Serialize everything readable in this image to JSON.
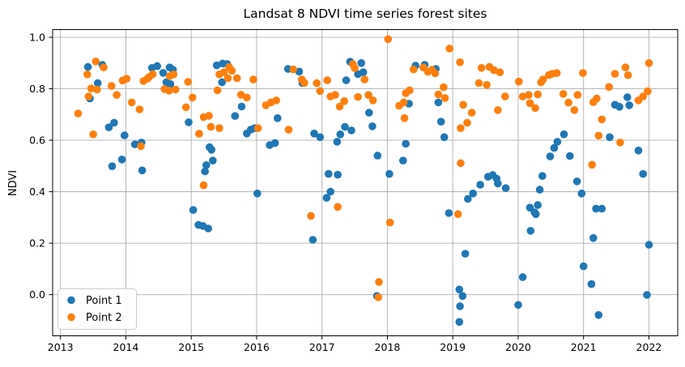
{
  "figure": {
    "title": "Landsat 8 NDVI time series forest sites",
    "ylabel": "NDVI",
    "legend": {
      "position": "lower left",
      "items": [
        {
          "label": "Point 1",
          "color": "#1f77b4"
        },
        {
          "label": "Point 2",
          "color": "#ff7f0e"
        }
      ]
    },
    "grid_color": "#b0b0b0",
    "spine_color": "#000000",
    "background_color": "#ffffff"
  },
  "chart_data": {
    "type": "scatter",
    "title": "Landsat 8 NDVI time series forest sites",
    "xlabel": "",
    "ylabel": "NDVI",
    "grid": true,
    "legend_position": "lower left",
    "xlim": [
      2012.88,
      2022.44
    ],
    "ylim": [
      -0.16,
      1.03
    ],
    "x_ticks": [
      2013,
      2014,
      2015,
      2016,
      2017,
      2018,
      2019,
      2020,
      2021,
      2022
    ],
    "x_tick_labels": [
      "2013",
      "2014",
      "2015",
      "2016",
      "2017",
      "2018",
      "2019",
      "2020",
      "2021",
      "2022"
    ],
    "y_ticks": [
      0.0,
      0.2,
      0.4,
      0.6,
      0.8,
      1.0
    ],
    "y_tick_labels": [
      "0.0",
      "0.2",
      "0.4",
      "0.6",
      "0.8",
      "1.0"
    ],
    "marker": "circle",
    "marker_radius_px": 4.8,
    "series": [
      {
        "name": "Point 1",
        "color": "#1f77b4",
        "points": [
          [
            2013.42,
            0.885
          ],
          [
            2013.64,
            0.893
          ],
          [
            2013.57,
            0.822
          ],
          [
            2013.45,
            0.762
          ],
          [
            2013.74,
            0.65
          ],
          [
            2013.82,
            0.668
          ],
          [
            2013.98,
            0.619
          ],
          [
            2014.14,
            0.584
          ],
          [
            2014.24,
            0.591
          ],
          [
            2013.79,
            0.499
          ],
          [
            2013.94,
            0.525
          ],
          [
            2014.25,
            0.483
          ],
          [
            2014.4,
            0.881
          ],
          [
            2014.48,
            0.888
          ],
          [
            2014.57,
            0.862
          ],
          [
            2014.67,
            0.883
          ],
          [
            2014.72,
            0.874
          ],
          [
            2014.62,
            0.825
          ],
          [
            2014.68,
            0.818
          ],
          [
            2014.96,
            0.67
          ],
          [
            2015.03,
            0.329
          ],
          [
            2015.11,
            0.271
          ],
          [
            2015.18,
            0.267
          ],
          [
            2015.26,
            0.257
          ],
          [
            2015.28,
            0.573
          ],
          [
            2015.31,
            0.563
          ],
          [
            2015.33,
            0.521
          ],
          [
            2015.23,
            0.503
          ],
          [
            2015.21,
            0.479
          ],
          [
            2015.39,
            0.891
          ],
          [
            2015.48,
            0.898
          ],
          [
            2015.55,
            0.896
          ],
          [
            2015.47,
            0.825
          ],
          [
            2015.77,
            0.731
          ],
          [
            2015.67,
            0.694
          ],
          [
            2015.85,
            0.626
          ],
          [
            2015.91,
            0.641
          ],
          [
            2015.97,
            0.647
          ],
          [
            2016.01,
            0.393
          ],
          [
            2016.2,
            0.581
          ],
          [
            2016.28,
            0.589
          ],
          [
            2016.32,
            0.686
          ],
          [
            2016.48,
            0.877
          ],
          [
            2016.65,
            0.867
          ],
          [
            2016.7,
            0.822
          ],
          [
            2016.86,
            0.213
          ],
          [
            2016.88,
            0.626
          ],
          [
            2016.97,
            0.612
          ],
          [
            2017.07,
            0.376
          ],
          [
            2017.13,
            0.4
          ],
          [
            2017.1,
            0.469
          ],
          [
            2017.24,
            0.466
          ],
          [
            2017.28,
            0.623
          ],
          [
            2017.23,
            0.594
          ],
          [
            2017.35,
            0.652
          ],
          [
            2017.45,
            0.638
          ],
          [
            2017.37,
            0.833
          ],
          [
            2017.43,
            0.905
          ],
          [
            2017.55,
            0.857
          ],
          [
            2017.63,
            0.864
          ],
          [
            2017.6,
            0.9
          ],
          [
            2017.72,
            0.707
          ],
          [
            2017.77,
            0.654
          ],
          [
            2017.85,
            0.54
          ],
          [
            2017.84,
            -0.005
          ],
          [
            2018.03,
            0.469
          ],
          [
            2018.24,
            0.521
          ],
          [
            2018.28,
            0.586
          ],
          [
            2018.33,
            0.742
          ],
          [
            2018.43,
            0.89
          ],
          [
            2018.57,
            0.893
          ],
          [
            2018.74,
            0.877
          ],
          [
            2018.78,
            0.747
          ],
          [
            2018.82,
            0.672
          ],
          [
            2018.87,
            0.612
          ],
          [
            2018.94,
            0.317
          ],
          [
            2019.1,
            0.02
          ],
          [
            2019.15,
            -0.005
          ],
          [
            2019.11,
            -0.045
          ],
          [
            2019.1,
            -0.106
          ],
          [
            2019.19,
            0.159
          ],
          [
            2019.23,
            0.372
          ],
          [
            2019.31,
            0.393
          ],
          [
            2019.42,
            0.427
          ],
          [
            2019.54,
            0.458
          ],
          [
            2019.61,
            0.465
          ],
          [
            2019.67,
            0.451
          ],
          [
            2019.69,
            0.432
          ],
          [
            2019.81,
            0.414
          ],
          [
            2020.0,
            -0.04
          ],
          [
            2020.07,
            0.068
          ],
          [
            2020.18,
            0.338
          ],
          [
            2020.25,
            0.32
          ],
          [
            2020.27,
            0.313
          ],
          [
            2020.3,
            0.348
          ],
          [
            2020.19,
            0.248
          ],
          [
            2020.33,
            0.408
          ],
          [
            2020.37,
            0.461
          ],
          [
            2020.49,
            0.537
          ],
          [
            2020.55,
            0.57
          ],
          [
            2020.6,
            0.594
          ],
          [
            2020.7,
            0.623
          ],
          [
            2020.79,
            0.539
          ],
          [
            2020.9,
            0.44
          ],
          [
            2020.97,
            0.393
          ],
          [
            2021.0,
            0.11
          ],
          [
            2021.12,
            0.041
          ],
          [
            2021.19,
            0.334
          ],
          [
            2021.28,
            0.334
          ],
          [
            2021.15,
            0.22
          ],
          [
            2021.23,
            -0.079
          ],
          [
            2021.4,
            0.612
          ],
          [
            2021.48,
            0.738
          ],
          [
            2021.55,
            0.73
          ],
          [
            2021.67,
            0.767
          ],
          [
            2021.7,
            0.736
          ],
          [
            2021.84,
            0.56
          ],
          [
            2021.91,
            0.469
          ],
          [
            2021.97,
            -0.001
          ],
          [
            2022.0,
            0.194
          ]
        ]
      },
      {
        "name": "Point 2",
        "color": "#ff7f0e",
        "points": [
          [
            2013.27,
            0.704
          ],
          [
            2013.41,
            0.856
          ],
          [
            2013.54,
            0.906
          ],
          [
            2013.66,
            0.883
          ],
          [
            2013.43,
            0.77
          ],
          [
            2013.47,
            0.801
          ],
          [
            2013.56,
            0.797
          ],
          [
            2013.5,
            0.623
          ],
          [
            2013.78,
            0.811
          ],
          [
            2013.86,
            0.776
          ],
          [
            2013.95,
            0.832
          ],
          [
            2014.01,
            0.839
          ],
          [
            2014.09,
            0.747
          ],
          [
            2014.21,
            0.72
          ],
          [
            2014.23,
            0.577
          ],
          [
            2014.27,
            0.83
          ],
          [
            2014.33,
            0.839
          ],
          [
            2014.36,
            0.846
          ],
          [
            2014.41,
            0.857
          ],
          [
            2014.67,
            0.849
          ],
          [
            2014.73,
            0.856
          ],
          [
            2014.59,
            0.799
          ],
          [
            2014.66,
            0.793
          ],
          [
            2014.76,
            0.797
          ],
          [
            2014.95,
            0.827
          ],
          [
            2014.92,
            0.728
          ],
          [
            2015.02,
            0.766
          ],
          [
            2015.12,
            0.625
          ],
          [
            2015.19,
            0.69
          ],
          [
            2015.27,
            0.695
          ],
          [
            2015.3,
            0.652
          ],
          [
            2015.43,
            0.647
          ],
          [
            2015.19,
            0.425
          ],
          [
            2015.43,
            0.856
          ],
          [
            2015.5,
            0.864
          ],
          [
            2015.58,
            0.885
          ],
          [
            2015.62,
            0.87
          ],
          [
            2015.56,
            0.841
          ],
          [
            2015.7,
            0.841
          ],
          [
            2015.4,
            0.794
          ],
          [
            2015.76,
            0.777
          ],
          [
            2015.85,
            0.766
          ],
          [
            2015.95,
            0.836
          ],
          [
            2016.02,
            0.647
          ],
          [
            2016.14,
            0.736
          ],
          [
            2016.22,
            0.747
          ],
          [
            2016.3,
            0.755
          ],
          [
            2016.49,
            0.641
          ],
          [
            2016.56,
            0.875
          ],
          [
            2016.69,
            0.836
          ],
          [
            2016.73,
            0.823
          ],
          [
            2016.83,
            0.306
          ],
          [
            2016.92,
            0.822
          ],
          [
            2016.97,
            0.791
          ],
          [
            2017.08,
            0.833
          ],
          [
            2017.13,
            0.77
          ],
          [
            2017.2,
            0.776
          ],
          [
            2017.27,
            0.731
          ],
          [
            2017.34,
            0.752
          ],
          [
            2017.24,
            0.341
          ],
          [
            2017.47,
            0.896
          ],
          [
            2017.5,
            0.88
          ],
          [
            2017.65,
            0.836
          ],
          [
            2017.55,
            0.768
          ],
          [
            2017.71,
            0.776
          ],
          [
            2017.78,
            0.755
          ],
          [
            2017.87,
            0.049
          ],
          [
            2017.86,
            -0.01
          ],
          [
            2018.01,
            0.993
          ],
          [
            2018.04,
            0.28
          ],
          [
            2018.18,
            0.734
          ],
          [
            2018.25,
            0.747
          ],
          [
            2018.28,
            0.783
          ],
          [
            2018.34,
            0.794
          ],
          [
            2018.26,
            0.686
          ],
          [
            2018.4,
            0.875
          ],
          [
            2018.55,
            0.883
          ],
          [
            2018.62,
            0.866
          ],
          [
            2018.68,
            0.874
          ],
          [
            2018.73,
            0.86
          ],
          [
            2018.78,
            0.778
          ],
          [
            2018.86,
            0.806
          ],
          [
            2018.88,
            0.764
          ],
          [
            2018.95,
            0.956
          ],
          [
            2019.08,
            0.313
          ],
          [
            2019.11,
            0.903
          ],
          [
            2019.12,
            0.647
          ],
          [
            2019.22,
            0.668
          ],
          [
            2019.16,
            0.738
          ],
          [
            2019.29,
            0.707
          ],
          [
            2019.12,
            0.511
          ],
          [
            2019.4,
            0.822
          ],
          [
            2019.44,
            0.881
          ],
          [
            2019.52,
            0.815
          ],
          [
            2019.56,
            0.885
          ],
          [
            2019.63,
            0.872
          ],
          [
            2019.72,
            0.864
          ],
          [
            2019.69,
            0.717
          ],
          [
            2019.8,
            0.77
          ],
          [
            2020.01,
            0.828
          ],
          [
            2020.07,
            0.77
          ],
          [
            2020.16,
            0.776
          ],
          [
            2020.18,
            0.744
          ],
          [
            2020.26,
            0.725
          ],
          [
            2020.3,
            0.778
          ],
          [
            2020.35,
            0.825
          ],
          [
            2020.38,
            0.836
          ],
          [
            2020.47,
            0.853
          ],
          [
            2020.52,
            0.858
          ],
          [
            2020.59,
            0.861
          ],
          [
            2020.69,
            0.78
          ],
          [
            2020.77,
            0.746
          ],
          [
            2020.91,
            0.776
          ],
          [
            2020.86,
            0.717
          ],
          [
            2020.99,
            0.861
          ],
          [
            2021.13,
            0.505
          ],
          [
            2021.15,
            0.748
          ],
          [
            2021.2,
            0.762
          ],
          [
            2021.23,
            0.618
          ],
          [
            2021.28,
            0.681
          ],
          [
            2021.39,
            0.807
          ],
          [
            2021.48,
            0.858
          ],
          [
            2021.56,
            0.591
          ],
          [
            2021.64,
            0.883
          ],
          [
            2021.68,
            0.853
          ],
          [
            2021.84,
            0.755
          ],
          [
            2021.91,
            0.77
          ],
          [
            2021.98,
            0.79
          ],
          [
            2022.0,
            0.9
          ]
        ]
      }
    ]
  }
}
